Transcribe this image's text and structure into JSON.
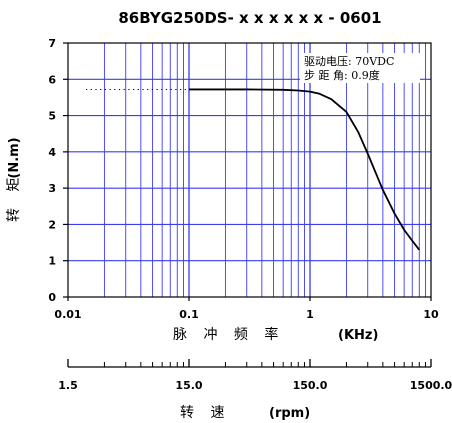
{
  "chart_data": {
    "type": "line",
    "title": "86BYG250DS- x x x x x x - 0601",
    "xlabel": "脉 冲 频 率",
    "xunit": "(KHz)",
    "ylabel": "转 矩",
    "yunit": "(N.m)",
    "xscale": "log",
    "xlim": [
      0.01,
      10
    ],
    "ylim": [
      0,
      7
    ],
    "x_ticks": [
      "0.01",
      "0.1",
      "1",
      "10"
    ],
    "y_ticks": [
      "0",
      "1",
      "2",
      "3",
      "4",
      "5",
      "6",
      "7"
    ],
    "grid": true,
    "annotations": [
      "驱动电压: 70VDC",
      "步 距 角: 0.9度"
    ],
    "series": [
      {
        "color": "#000000",
        "x": [
          0.1,
          0.3,
          0.6,
          0.8,
          1.0,
          1.2,
          1.5,
          2.0,
          2.5,
          3.0,
          4.0,
          5.0,
          6.0,
          7.0,
          8.0
        ],
        "y": [
          5.72,
          5.72,
          5.71,
          5.69,
          5.66,
          5.6,
          5.45,
          5.1,
          4.55,
          3.95,
          2.95,
          2.3,
          1.85,
          1.55,
          1.3
        ]
      }
    ],
    "reference_line": {
      "y": 5.72,
      "x_from": 0.01,
      "x_to": 0.1,
      "style": "dotted"
    },
    "speed_axis": {
      "label": "转 速",
      "unit": "(rpm)",
      "ticks": [
        "1.5",
        "15.0",
        "150.0",
        "1500.0"
      ]
    },
    "colors": {
      "grid": "#3b3bf0",
      "frame": "#000000",
      "curve": "#000000"
    }
  }
}
